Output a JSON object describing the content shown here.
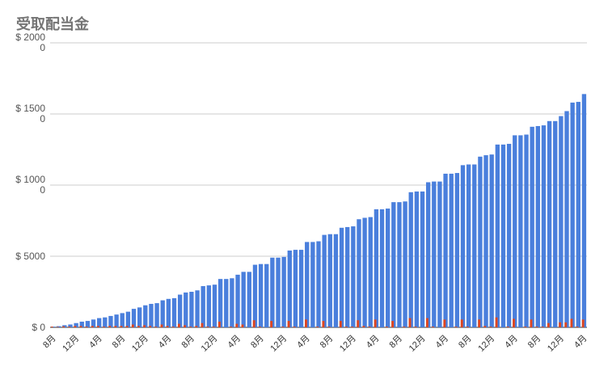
{
  "chart_data": {
    "type": "bar",
    "title": "受取配当金",
    "categories": [
      "8月",
      null,
      null,
      null,
      "12月",
      null,
      null,
      null,
      "4月",
      null,
      null,
      null,
      "8月",
      null,
      null,
      null,
      "12月",
      null,
      null,
      null,
      "4月",
      null,
      null,
      null,
      "8月",
      null,
      null,
      null,
      "12月",
      null,
      null,
      null,
      "4月",
      null,
      null,
      null,
      "8月",
      null,
      null,
      null,
      "12月",
      null,
      null,
      null,
      "4月",
      null,
      null,
      null,
      "8月",
      null,
      null,
      null,
      "12月",
      null,
      null,
      null,
      "4月",
      null,
      null,
      null,
      "8月",
      null,
      null,
      null,
      "12月",
      null,
      null,
      null,
      "4月",
      null,
      null,
      null,
      "8月",
      null,
      null,
      null,
      "12月",
      null,
      null,
      null,
      "4月",
      null,
      null,
      null,
      "8月",
      null,
      null,
      null,
      "12月",
      null,
      null,
      null,
      "4月"
    ],
    "series": [
      {
        "color": "#4a7fdc",
        "values": [
          50,
          80,
          150,
          200,
          300,
          400,
          450,
          550,
          650,
          700,
          800,
          900,
          1000,
          1100,
          1300,
          1400,
          1550,
          1650,
          1700,
          1900,
          2000,
          2050,
          2300,
          2450,
          2500,
          2600,
          2900,
          2950,
          3000,
          3400,
          3400,
          3450,
          3700,
          3900,
          3900,
          4400,
          4450,
          4450,
          4900,
          4900,
          4950,
          5400,
          5450,
          5450,
          6000,
          6000,
          6050,
          6500,
          6550,
          6550,
          7000,
          7050,
          7100,
          7600,
          7700,
          7750,
          8300,
          8300,
          8350,
          8800,
          8800,
          8850,
          9500,
          9550,
          9550,
          10200,
          10250,
          10250,
          10800,
          10800,
          10850,
          11400,
          11450,
          11450,
          12000,
          12100,
          12150,
          12850,
          12850,
          12900,
          13500,
          13500,
          13550,
          14100,
          14150,
          14200,
          14500,
          14500,
          14850,
          15200,
          15800,
          15850,
          16400
        ]
      },
      {
        "color": "#e0461f",
        "values": [
          50,
          30,
          70,
          50,
          100,
          100,
          50,
          100,
          100,
          50,
          100,
          100,
          100,
          100,
          200,
          100,
          150,
          100,
          50,
          200,
          100,
          50,
          250,
          150,
          50,
          100,
          300,
          50,
          50,
          400,
          0,
          50,
          250,
          200,
          0,
          500,
          50,
          0,
          450,
          0,
          50,
          450,
          50,
          0,
          550,
          0,
          50,
          450,
          50,
          0,
          450,
          50,
          50,
          500,
          100,
          50,
          550,
          0,
          50,
          450,
          0,
          50,
          650,
          50,
          0,
          650,
          50,
          0,
          550,
          0,
          50,
          550,
          50,
          0,
          550,
          100,
          50,
          700,
          0,
          50,
          600,
          0,
          50,
          550,
          50,
          50,
          300,
          0,
          350,
          350,
          600,
          50,
          550
        ]
      }
    ],
    "ylim": [
      0,
      20000
    ],
    "yticks": [
      {
        "value": 0,
        "label": "$ 0"
      },
      {
        "value": 5000,
        "label": "$ 5000"
      },
      {
        "value": 10000,
        "label": "$ 10000"
      },
      {
        "value": 15000,
        "label": "$ 15000"
      },
      {
        "value": 20000,
        "label": "$ 20000"
      }
    ],
    "grid": true
  }
}
